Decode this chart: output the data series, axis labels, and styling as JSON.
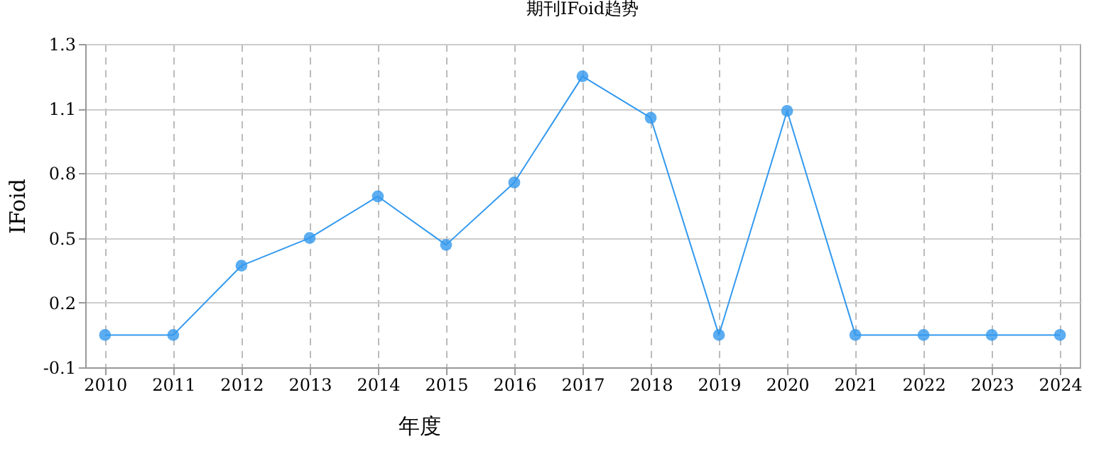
{
  "chart_data": {
    "type": "line",
    "title": "期刊IFoid趋势",
    "xlabel": "年度",
    "ylabel": "IFoid",
    "categories": [
      "2010",
      "2011",
      "2012",
      "2013",
      "2014",
      "2015",
      "2016",
      "2017",
      "2018",
      "2019",
      "2020",
      "2021",
      "2022",
      "2023",
      "2024"
    ],
    "series": [
      {
        "color": "#3399ee",
        "values": [
          0.08,
          0.08,
          0.38,
          0.5,
          0.68,
          0.47,
          0.74,
          1.2,
          1.02,
          0.08,
          1.05,
          0.08,
          0.08,
          0.08,
          0.08
        ]
      }
    ],
    "ylim": [
      -0.06,
      1.34
    ],
    "yticks": [
      {
        "value": -0.06,
        "label": "-0.1"
      },
      {
        "value": 0.22,
        "label": "0.2"
      },
      {
        "value": 0.5,
        "label": "0.5"
      },
      {
        "value": 0.78,
        "label": "0.8"
      },
      {
        "value": 1.06,
        "label": "1.1"
      },
      {
        "value": 1.34,
        "label": "1.3"
      }
    ],
    "grid": true,
    "marker": "circle",
    "line_style": "solid"
  }
}
